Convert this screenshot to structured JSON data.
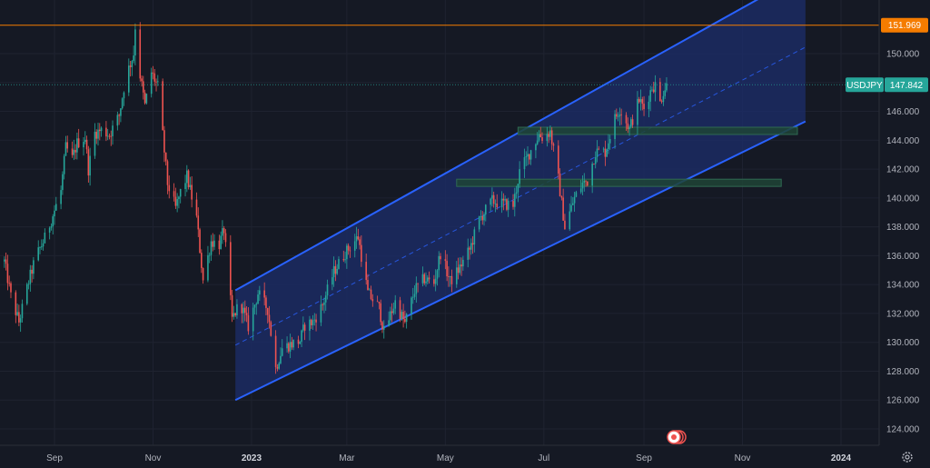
{
  "chart_data": {
    "type": "candlestick",
    "symbol": "USDJPY",
    "last_price": "147.842",
    "marked_high": "151.969",
    "y_axis": {
      "range": [
        122.5,
        153.0
      ],
      "ticks": [
        "150.000",
        "148.000",
        "146.000",
        "144.000",
        "142.000",
        "140.000",
        "138.000",
        "136.000",
        "134.000",
        "132.000",
        "130.000",
        "128.000",
        "126.000",
        "124.000"
      ]
    },
    "x_axis": {
      "ticks": [
        {
          "label": "Sep",
          "date": "2022-09-01",
          "bold": false
        },
        {
          "label": "Nov",
          "date": "2022-11-01",
          "bold": false
        },
        {
          "label": "2023",
          "date": "2023-01-01",
          "bold": true
        },
        {
          "label": "Mar",
          "date": "2023-03-01",
          "bold": false
        },
        {
          "label": "May",
          "date": "2023-05-01",
          "bold": false
        },
        {
          "label": "Jul",
          "date": "2023-07-01",
          "bold": false
        },
        {
          "label": "Sep",
          "date": "2023-09-01",
          "bold": false
        },
        {
          "label": "Nov",
          "date": "2023-11-01",
          "bold": false
        },
        {
          "label": "2024",
          "date": "2024-01-01",
          "bold": true
        }
      ],
      "range": [
        "2022-08-01",
        "2024-02-15"
      ]
    },
    "price_path": [
      [
        "2022-08-01",
        135.6
      ],
      [
        "2022-08-05",
        133.2
      ],
      [
        "2022-08-10",
        131.4
      ],
      [
        "2022-08-16",
        134.2
      ],
      [
        "2022-08-20",
        135.8
      ],
      [
        "2022-08-26",
        137.2
      ],
      [
        "2022-08-31",
        138.8
      ],
      [
        "2022-09-05",
        140.5
      ],
      [
        "2022-09-08",
        143.5
      ],
      [
        "2022-09-12",
        142.7
      ],
      [
        "2022-09-15",
        143.8
      ],
      [
        "2022-09-20",
        144.2
      ],
      [
        "2022-09-22",
        142.0
      ],
      [
        "2022-09-26",
        144.5
      ],
      [
        "2022-09-30",
        144.7
      ],
      [
        "2022-10-05",
        144.4
      ],
      [
        "2022-10-11",
        145.7
      ],
      [
        "2022-10-15",
        148.3
      ],
      [
        "2022-10-20",
        150.0
      ],
      [
        "2022-10-21",
        151.9
      ],
      [
        "2022-10-24",
        148.5
      ],
      [
        "2022-10-27",
        146.4
      ],
      [
        "2022-10-31",
        148.7
      ],
      [
        "2022-11-04",
        147.7
      ],
      [
        "2022-11-10",
        141.0
      ],
      [
        "2022-11-15",
        139.3
      ],
      [
        "2022-11-18",
        140.4
      ],
      [
        "2022-11-22",
        141.5
      ],
      [
        "2022-11-28",
        138.6
      ],
      [
        "2022-12-02",
        134.3
      ],
      [
        "2022-12-07",
        137.0
      ],
      [
        "2022-12-12",
        136.8
      ],
      [
        "2022-12-15",
        137.8
      ],
      [
        "2022-12-20",
        131.6
      ],
      [
        "2022-12-25",
        132.8
      ],
      [
        "2022-12-30",
        131.1
      ],
      [
        "2023-01-05",
        133.4
      ],
      [
        "2023-01-11",
        132.3
      ],
      [
        "2023-01-16",
        128.2
      ],
      [
        "2023-01-20",
        129.6
      ],
      [
        "2023-01-26",
        129.9
      ],
      [
        "2023-01-31",
        130.1
      ],
      [
        "2023-02-03",
        131.2
      ],
      [
        "2023-02-08",
        131.4
      ],
      [
        "2023-02-14",
        132.6
      ],
      [
        "2023-02-21",
        134.9
      ],
      [
        "2023-02-28",
        136.2
      ],
      [
        "2023-03-08",
        137.3
      ],
      [
        "2023-03-14",
        133.4
      ],
      [
        "2023-03-21",
        132.4
      ],
      [
        "2023-03-24",
        130.7
      ],
      [
        "2023-03-31",
        132.8
      ],
      [
        "2023-04-06",
        131.3
      ],
      [
        "2023-04-12",
        133.6
      ],
      [
        "2023-04-18",
        134.4
      ],
      [
        "2023-04-24",
        134.1
      ],
      [
        "2023-04-28",
        136.2
      ],
      [
        "2023-05-04",
        134.2
      ],
      [
        "2023-05-09",
        135.0
      ],
      [
        "2023-05-16",
        136.4
      ],
      [
        "2023-05-22",
        138.5
      ],
      [
        "2023-05-30",
        139.8
      ],
      [
        "2023-06-05",
        139.6
      ],
      [
        "2023-06-12",
        139.5
      ],
      [
        "2023-06-16",
        141.8
      ],
      [
        "2023-06-22",
        143.1
      ],
      [
        "2023-06-28",
        144.4
      ],
      [
        "2023-06-30",
        144.2
      ],
      [
        "2023-07-05",
        144.6
      ],
      [
        "2023-07-10",
        141.3
      ],
      [
        "2023-07-14",
        138.0
      ],
      [
        "2023-07-20",
        140.0
      ],
      [
        "2023-07-25",
        141.0
      ],
      [
        "2023-07-28",
        141.2
      ],
      [
        "2023-08-02",
        143.2
      ],
      [
        "2023-08-08",
        143.2
      ],
      [
        "2023-08-14",
        145.5
      ],
      [
        "2023-08-17",
        146.2
      ],
      [
        "2023-08-23",
        144.8
      ],
      [
        "2023-08-29",
        146.8
      ],
      [
        "2023-09-01",
        146.2
      ],
      [
        "2023-09-06",
        147.7
      ],
      [
        "2023-09-08",
        147.8
      ],
      [
        "2023-09-11",
        146.6
      ],
      [
        "2023-09-13",
        147.4
      ],
      [
        "2023-09-15",
        147.8
      ]
    ],
    "channel": {
      "upper": [
        [
          "2022-12-22",
          133.6
        ],
        [
          "2023-12-10",
          155.6
        ]
      ],
      "lower": [
        [
          "2022-12-22",
          126.0
        ],
        [
          "2023-12-10",
          145.3
        ]
      ]
    },
    "zones": [
      {
        "from": "2023-06-15",
        "to": "2023-12-05",
        "low": 144.4,
        "high": 144.9
      },
      {
        "from": "2023-05-08",
        "to": "2023-11-25",
        "low": 140.8,
        "high": 141.3
      }
    ],
    "horizontal_line": 151.969,
    "colors": {
      "background": "#151924",
      "grid": "#1f2330",
      "bull": "#26a69a",
      "bear": "#ef5350",
      "channel_line": "#2962ff",
      "channel_fill": "#1c2d6b",
      "zone": "#1f4436",
      "high_line": "#f57c00",
      "price_line": "#26a69a"
    }
  }
}
